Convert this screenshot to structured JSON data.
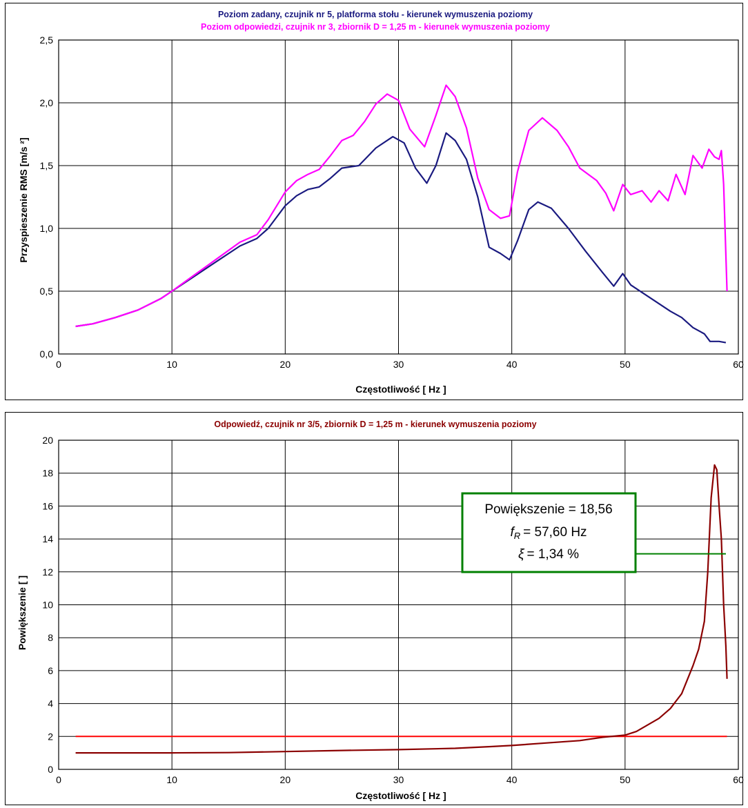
{
  "chart_data": [
    {
      "type": "line",
      "title": "Poziom zadany, czujnik nr 5, platforma stołu - kierunek wymuszenia poziomy",
      "subtitle": "Poziom odpowiedzi, czujnik nr 3, zbiornik D = 1,25 m - kierunek wymuszenia poziomy",
      "xlabel": "Częstotliwość [ Hz ]",
      "ylabel": "Przyspieszenie RMS [m/s  ²]",
      "xlim": [
        0,
        60
      ],
      "ylim": [
        0,
        2.5
      ],
      "x_ticks": [
        "0",
        "10",
        "20",
        "30",
        "40",
        "50",
        "60"
      ],
      "y_ticks": [
        "0,0",
        "0,5",
        "1,0",
        "1,5",
        "2,0",
        "2,5"
      ],
      "grid": true,
      "colors": {
        "title": "#1a1a80",
        "subtitle": "#ff00ff"
      },
      "series": [
        {
          "color": "#1a1a80",
          "points": [
            [
              1.5,
              0.22
            ],
            [
              3,
              0.24
            ],
            [
              5,
              0.29
            ],
            [
              7,
              0.35
            ],
            [
              9,
              0.44
            ],
            [
              10,
              0.5
            ],
            [
              12,
              0.62
            ],
            [
              14,
              0.74
            ],
            [
              16,
              0.86
            ],
            [
              17.5,
              0.92
            ],
            [
              18.5,
              1.0
            ],
            [
              20,
              1.18
            ],
            [
              21,
              1.26
            ],
            [
              22,
              1.31
            ],
            [
              23,
              1.33
            ],
            [
              24,
              1.4
            ],
            [
              25,
              1.48
            ],
            [
              26.5,
              1.5
            ],
            [
              28,
              1.64
            ],
            [
              29.5,
              1.73
            ],
            [
              30.5,
              1.68
            ],
            [
              31.5,
              1.48
            ],
            [
              32.5,
              1.36
            ],
            [
              33.3,
              1.5
            ],
            [
              34.2,
              1.76
            ],
            [
              35,
              1.7
            ],
            [
              36,
              1.55
            ],
            [
              37,
              1.25
            ],
            [
              38,
              0.85
            ],
            [
              39,
              0.8
            ],
            [
              39.8,
              0.75
            ],
            [
              40.5,
              0.9
            ],
            [
              41.5,
              1.15
            ],
            [
              42.3,
              1.21
            ],
            [
              43.5,
              1.16
            ],
            [
              45,
              1.0
            ],
            [
              46.5,
              0.82
            ],
            [
              48,
              0.65
            ],
            [
              49,
              0.54
            ],
            [
              49.8,
              0.64
            ],
            [
              50.5,
              0.55
            ],
            [
              52,
              0.46
            ],
            [
              54,
              0.34
            ],
            [
              55,
              0.29
            ],
            [
              56,
              0.21
            ],
            [
              57,
              0.16
            ],
            [
              57.5,
              0.1
            ],
            [
              58.3,
              0.1
            ],
            [
              58.9,
              0.09
            ]
          ]
        },
        {
          "color": "#ff00ff",
          "points": [
            [
              1.5,
              0.22
            ],
            [
              3,
              0.24
            ],
            [
              5,
              0.29
            ],
            [
              7,
              0.35
            ],
            [
              9,
              0.44
            ],
            [
              10,
              0.5
            ],
            [
              12,
              0.63
            ],
            [
              14,
              0.76
            ],
            [
              16,
              0.89
            ],
            [
              17.5,
              0.95
            ],
            [
              18.5,
              1.07
            ],
            [
              20,
              1.29
            ],
            [
              21,
              1.38
            ],
            [
              22,
              1.43
            ],
            [
              23,
              1.47
            ],
            [
              24,
              1.58
            ],
            [
              25,
              1.7
            ],
            [
              26,
              1.74
            ],
            [
              27,
              1.85
            ],
            [
              28,
              1.99
            ],
            [
              29,
              2.07
            ],
            [
              30,
              2.02
            ],
            [
              31,
              1.79
            ],
            [
              32.3,
              1.65
            ],
            [
              33.3,
              1.9
            ],
            [
              34.2,
              2.14
            ],
            [
              35,
              2.05
            ],
            [
              36,
              1.8
            ],
            [
              37,
              1.4
            ],
            [
              38,
              1.15
            ],
            [
              39,
              1.08
            ],
            [
              39.8,
              1.1
            ],
            [
              40.5,
              1.45
            ],
            [
              41.5,
              1.78
            ],
            [
              42.7,
              1.88
            ],
            [
              44,
              1.78
            ],
            [
              45,
              1.65
            ],
            [
              46,
              1.48
            ],
            [
              47.5,
              1.38
            ],
            [
              48.3,
              1.28
            ],
            [
              49,
              1.14
            ],
            [
              49.8,
              1.35
            ],
            [
              50.5,
              1.27
            ],
            [
              51.5,
              1.3
            ],
            [
              52.3,
              1.21
            ],
            [
              53,
              1.3
            ],
            [
              53.8,
              1.22
            ],
            [
              54.5,
              1.43
            ],
            [
              55.3,
              1.27
            ],
            [
              56,
              1.58
            ],
            [
              56.8,
              1.48
            ],
            [
              57.4,
              1.63
            ],
            [
              57.9,
              1.57
            ],
            [
              58.3,
              1.55
            ],
            [
              58.5,
              1.62
            ],
            [
              58.7,
              1.35
            ],
            [
              59,
              0.5
            ]
          ]
        }
      ]
    },
    {
      "type": "line",
      "title": "Odpowiedź, czujnik nr 3/5, zbiornik D = 1,25 m - kierunek wymuszenia poziomy",
      "xlabel": "Częstotliwość [ Hz ]",
      "ylabel": "Powiększenie [ ]",
      "xlim": [
        0,
        60
      ],
      "ylim": [
        0,
        20
      ],
      "x_ticks": [
        "0",
        "10",
        "20",
        "30",
        "40",
        "50",
        "60"
      ],
      "y_ticks": [
        "0",
        "2",
        "4",
        "6",
        "8",
        "10",
        "12",
        "14",
        "16",
        "18",
        "20"
      ],
      "grid": true,
      "colors": {
        "title": "#8b0000",
        "series": "#8b0000",
        "reference": "#ff0000",
        "callout_border": "#008000"
      },
      "reference_line": {
        "y": 2,
        "from_x": 1.5,
        "to_x": 59
      },
      "series": [
        {
          "color": "#8b0000",
          "points": [
            [
              1.5,
              1.0
            ],
            [
              10,
              1.0
            ],
            [
              15,
              1.02
            ],
            [
              20,
              1.08
            ],
            [
              25,
              1.15
            ],
            [
              30,
              1.2
            ],
            [
              35,
              1.28
            ],
            [
              38,
              1.38
            ],
            [
              40,
              1.45
            ],
            [
              43,
              1.6
            ],
            [
              46,
              1.75
            ],
            [
              48,
              1.95
            ],
            [
              50,
              2.08
            ],
            [
              51,
              2.3
            ],
            [
              52,
              2.7
            ],
            [
              53,
              3.1
            ],
            [
              54,
              3.7
            ],
            [
              55,
              4.6
            ],
            [
              56,
              6.3
            ],
            [
              56.5,
              7.3
            ],
            [
              57,
              9.0
            ],
            [
              57.3,
              12.0
            ],
            [
              57.6,
              16.5
            ],
            [
              57.9,
              18.5
            ],
            [
              58.1,
              18.2
            ],
            [
              58.3,
              16.0
            ],
            [
              58.5,
              14.0
            ],
            [
              58.7,
              10.0
            ],
            [
              58.9,
              7.5
            ],
            [
              59,
              5.5
            ]
          ]
        }
      ],
      "annotation": {
        "line1": "Powiększenie = 18,56",
        "line2_symbol": "f",
        "line2_sub": "R",
        "line2": "= 57,60 Hz",
        "line3_symbol": "ξ",
        "line3": "= 1,34 %",
        "leader_y": 13.1,
        "leader_to_x": 58.9
      }
    }
  ]
}
